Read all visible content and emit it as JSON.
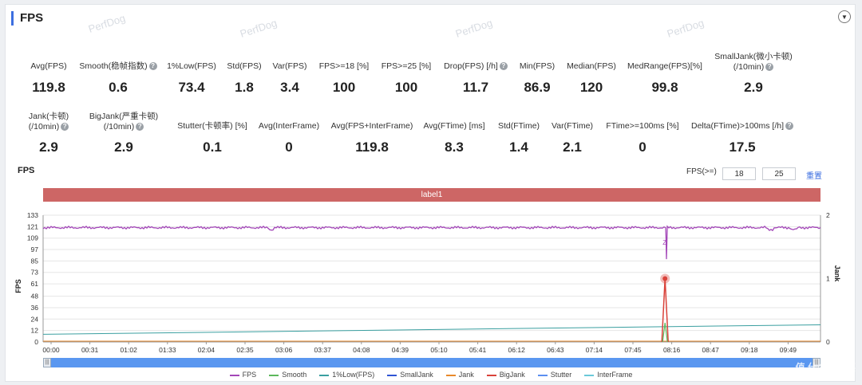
{
  "header": {
    "title": "FPS"
  },
  "watermark": "PerfDog",
  "stats_row1": [
    {
      "label": "Avg(FPS)",
      "value": "119.8",
      "help": false
    },
    {
      "label": "Smooth(稳帧指数)",
      "value": "0.6",
      "help": true
    },
    {
      "label": "1%Low(FPS)",
      "value": "73.4",
      "help": false
    },
    {
      "label": "Std(FPS)",
      "value": "1.8",
      "help": false
    },
    {
      "label": "Var(FPS)",
      "value": "3.4",
      "help": false
    },
    {
      "label": "FPS>=18 [%]",
      "value": "100",
      "help": false
    },
    {
      "label": "FPS>=25 [%]",
      "value": "100",
      "help": false
    },
    {
      "label": "Drop(FPS) [/h]",
      "value": "11.7",
      "help": true
    },
    {
      "label": "Min(FPS)",
      "value": "86.9",
      "help": false
    },
    {
      "label": "Median(FPS)",
      "value": "120",
      "help": false
    },
    {
      "label": "MedRange(FPS)[%]",
      "value": "99.8",
      "help": false
    },
    {
      "label": "SmallJank(微小卡顿)",
      "label2": "(/10min)",
      "value": "2.9",
      "help": true
    }
  ],
  "stats_row2": [
    {
      "label": "Jank(卡顿)",
      "label2": "(/10min)",
      "value": "2.9",
      "help": true
    },
    {
      "label": "BigJank(严重卡顿)",
      "label2": "(/10min)",
      "value": "2.9",
      "help": true
    },
    {
      "label": "Stutter(卡顿率) [%]",
      "value": "0.1",
      "help": false
    },
    {
      "label": "Avg(InterFrame)",
      "value": "0",
      "help": false
    },
    {
      "label": "Avg(FPS+InterFrame)",
      "value": "119.8",
      "help": false
    },
    {
      "label": "Avg(FTime) [ms]",
      "value": "8.3",
      "help": false
    },
    {
      "label": "Std(FTime)",
      "value": "1.4",
      "help": false
    },
    {
      "label": "Var(FTime)",
      "value": "2.1",
      "help": false
    },
    {
      "label": "FTime>=100ms [%]",
      "value": "0",
      "help": false
    },
    {
      "label": "Delta(FTime)>100ms [/h]",
      "value": "17.5",
      "help": true
    }
  ],
  "chart_section": {
    "title": "FPS",
    "threshold_label": "FPS(>=)",
    "threshold1": "18",
    "threshold2": "25",
    "reset_label": "重置",
    "label_bar": "label1"
  },
  "chart_data": {
    "type": "line",
    "ylabel": "FPS",
    "y2label": "Jank",
    "y_ticks": [
      "133",
      "121",
      "109",
      "97",
      "85",
      "73",
      "61",
      "48",
      "36",
      "24",
      "12",
      "0"
    ],
    "y_min": 0,
    "y_max": 133,
    "y2_ticks": [
      "2",
      "1",
      "0"
    ],
    "x_ticks": [
      "00:00",
      "00:31",
      "01:02",
      "01:33",
      "02:04",
      "02:35",
      "03:06",
      "03:37",
      "04:08",
      "04:39",
      "05:10",
      "05:41",
      "06:12",
      "06:43",
      "07:14",
      "07:45",
      "08:16",
      "08:47",
      "09:18",
      "09:49"
    ],
    "duration_seconds": 620,
    "series": [
      {
        "name": "FPS",
        "color": "#a346b8"
      },
      {
        "name": "Smooth",
        "color": "#5cb85c"
      },
      {
        "name": "1%Low(FPS)",
        "color": "#3a9fa0"
      },
      {
        "name": "SmallJank",
        "color": "#2f55d4"
      },
      {
        "name": "Jank",
        "color": "#e8892b"
      },
      {
        "name": "BigJank",
        "color": "#d9423a"
      },
      {
        "name": "Stutter",
        "color": "#5b8ff0"
      },
      {
        "name": "InterFrame",
        "color": "#6ac9d9"
      }
    ],
    "fps_baseline": 120,
    "fps_dip": {
      "time_seconds": 496,
      "min_value": 86.9,
      "marker": "Z"
    },
    "bigjank_peak": {
      "time_seconds": 496,
      "jank_value": 1
    },
    "one_percent_low_start": 8,
    "one_percent_low_end": 18
  }
}
